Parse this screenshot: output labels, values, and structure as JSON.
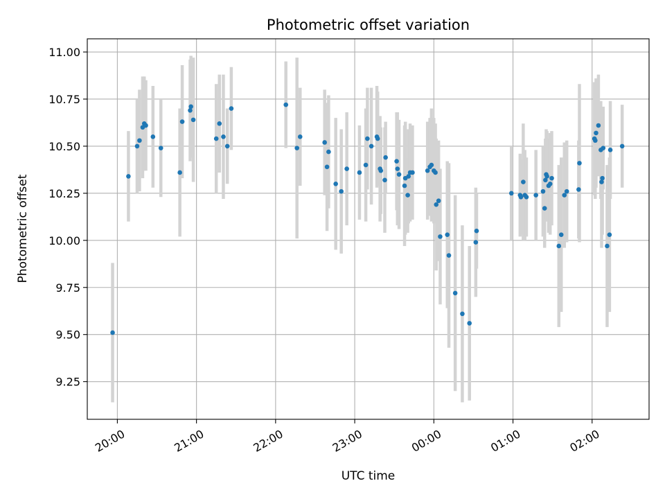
{
  "chart_data": {
    "type": "scatter",
    "title": "Photometric offset variation",
    "xlabel": "UTC time",
    "ylabel": "Photometric offset",
    "x_unit": "hours relative to 00:00 UTC",
    "xlim": [
      -4.38,
      2.72
    ],
    "ylim": [
      9.05,
      11.07
    ],
    "grid": true,
    "xticks": [
      {
        "value": -4,
        "label": "20:00"
      },
      {
        "value": -3,
        "label": "21:00"
      },
      {
        "value": -2,
        "label": "22:00"
      },
      {
        "value": -1,
        "label": "23:00"
      },
      {
        "value": 0,
        "label": "00:00"
      },
      {
        "value": 1,
        "label": "01:00"
      },
      {
        "value": 2,
        "label": "02:00"
      }
    ],
    "yticks": [
      {
        "value": 9.25,
        "label": "9.25"
      },
      {
        "value": 9.5,
        "label": "9.50"
      },
      {
        "value": 9.75,
        "label": "9.75"
      },
      {
        "value": 10.0,
        "label": "10.00"
      },
      {
        "value": 10.25,
        "label": "10.25"
      },
      {
        "value": 10.5,
        "label": "10.50"
      },
      {
        "value": 10.75,
        "label": "10.75"
      },
      {
        "value": 11.0,
        "label": "11.00"
      }
    ],
    "colors": {
      "points": "#1f77b4",
      "errorbars": "#d3d3d3",
      "grid": "#b0b0b0"
    },
    "series": [
      {
        "x": [
          -4.06,
          -3.86,
          -3.75,
          -3.72,
          -3.68,
          -3.66,
          -3.64,
          -3.55,
          -3.45,
          -3.21,
          -3.18,
          -3.08,
          -3.07,
          -3.04,
          -2.75,
          -2.71,
          -2.66,
          -2.61,
          -2.56,
          -1.87,
          -1.73,
          -1.69,
          -1.38,
          -1.35,
          -1.33,
          -1.24,
          -1.17,
          -1.1,
          -0.94,
          -0.86,
          -0.84,
          -0.79,
          -0.72,
          -0.71,
          -0.68,
          -0.67,
          -0.62,
          -0.61,
          -0.47,
          -0.46,
          -0.44,
          -0.37,
          -0.36,
          -0.33,
          -0.32,
          -0.3,
          -0.27,
          -0.08,
          -0.05,
          -0.03,
          0.0,
          0.02,
          0.03,
          0.06,
          0.08,
          0.17,
          0.19,
          0.27,
          0.36,
          0.45,
          0.53,
          0.54,
          0.98,
          1.09,
          1.1,
          1.13,
          1.15,
          1.17,
          1.29,
          1.38,
          1.4,
          1.41,
          1.42,
          1.43,
          1.45,
          1.47,
          1.49,
          1.58,
          1.61,
          1.65,
          1.68,
          1.83,
          1.84,
          2.03,
          2.04,
          2.05,
          2.08,
          2.11,
          2.12,
          2.13,
          2.14,
          2.19,
          2.22,
          2.23,
          2.38
        ],
        "y": [
          9.51,
          10.34,
          10.5,
          10.53,
          10.6,
          10.62,
          10.61,
          10.55,
          10.49,
          10.36,
          10.63,
          10.69,
          10.71,
          10.64,
          10.54,
          10.62,
          10.55,
          10.5,
          10.7,
          10.72,
          10.49,
          10.55,
          10.52,
          10.39,
          10.47,
          10.3,
          10.26,
          10.38,
          10.36,
          10.4,
          10.54,
          10.5,
          10.55,
          10.54,
          10.38,
          10.37,
          10.32,
          10.44,
          10.42,
          10.38,
          10.35,
          10.29,
          10.33,
          10.24,
          10.34,
          10.36,
          10.36,
          10.37,
          10.39,
          10.4,
          10.37,
          10.36,
          10.19,
          10.21,
          10.02,
          10.03,
          9.92,
          9.72,
          9.61,
          9.56,
          9.99,
          10.05,
          10.25,
          10.24,
          10.23,
          10.31,
          10.24,
          10.23,
          10.24,
          10.26,
          10.17,
          10.32,
          10.35,
          10.34,
          10.29,
          10.3,
          10.33,
          9.97,
          10.03,
          10.24,
          10.26,
          10.27,
          10.41,
          10.54,
          10.53,
          10.57,
          10.61,
          10.48,
          10.31,
          10.33,
          10.49,
          9.97,
          10.03,
          10.48,
          10.5
        ],
        "yerr": [
          0.37,
          0.24,
          0.25,
          0.27,
          0.27,
          0.25,
          0.24,
          0.27,
          0.26,
          0.34,
          0.3,
          0.27,
          0.27,
          0.33,
          0.29,
          0.26,
          0.33,
          0.2,
          0.22,
          0.23,
          0.48,
          0.26,
          0.28,
          0.34,
          0.3,
          0.35,
          0.33,
          0.3,
          0.25,
          0.3,
          0.27,
          0.31,
          0.27,
          0.25,
          0.28,
          0.23,
          0.28,
          0.19,
          0.26,
          0.3,
          0.29,
          0.32,
          0.3,
          0.2,
          0.25,
          0.26,
          0.25,
          0.26,
          0.26,
          0.3,
          0.28,
          0.26,
          0.35,
          0.32,
          0.36,
          0.39,
          0.49,
          0.52,
          0.47,
          0.41,
          0.29,
          0.2,
          0.25,
          0.22,
          0.2,
          0.31,
          0.24,
          0.21,
          0.24,
          0.24,
          0.21,
          0.22,
          0.24,
          0.24,
          0.25,
          0.27,
          0.25,
          0.43,
          0.41,
          0.28,
          0.27,
          0.26,
          0.42,
          0.3,
          0.31,
          0.29,
          0.27,
          0.26,
          0.35,
          0.3,
          0.22,
          0.43,
          0.41,
          0.26,
          0.22
        ]
      }
    ]
  }
}
